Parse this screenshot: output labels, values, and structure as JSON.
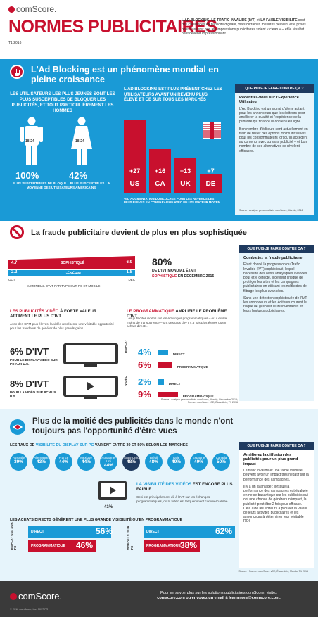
{
  "header": {
    "brand": "comScore.",
    "title": "NORMES PUBLICITAIRES",
    "period": "T1 2016",
    "intro_bold1": "L'AD BLOCKING, LE TRAFIC INVALIDE (IVT)",
    "intro_mid": " et ",
    "intro_bold2": "LA FAIBLE VISIBILITÉ",
    "intro_rest": " sont des challenges en publicité digitale, mais certaines mesures peuvent être prises pour s'assurer que les impressions publicitaires soient « clean » – et le résultat peut devenir impressionnant."
  },
  "section1": {
    "title": "L'Ad Blocking est un phénomène mondial en pleine croissance",
    "young_text": "LES UTILISATEURS LES PLUS JEUNES SONT LES PLUS SUSCEPTIBLES DE BLOQUER LES PUBLICITÉS, ET TOUT PARTICULIÈREMENT LES HOMMES",
    "age_label": "18-24",
    "men_pct": "100%",
    "men_label": "PLUS SUSCEPTIBLES DE BLOQUER DES PUBLICITÉS QUE LA MOYENNE DES UTILISATEURS AMÉRICAINS",
    "women_pct": "42%",
    "women_label": "PLUS SUSCEPTIBLES",
    "rich_text": "L'AD BLOCKING EST PLUS PRÉSENT CHEZ LES UTILISATEURS AYANT UN REVENU PLUS ÉLEVÉ ET CE SUR TOUS LES MARCHÉS",
    "bars": [
      {
        "value": "+27",
        "country": "US",
        "num": 27
      },
      {
        "value": "+16",
        "country": "CA",
        "num": 16
      },
      {
        "value": "+13",
        "country": "UK",
        "num": 13
      },
      {
        "value": "+7",
        "country": "DE",
        "num": 7
      }
    ],
    "bars_caption": "% D'AUGMENTATION DU BLOCAGE POUR LES REVENUS LES PLUS ÉLEVÉS EN COMPARAISON AVEC UN UTILISATEUR MOYEN",
    "sidebar_head": "QUE PUIS-JE FAIRE CONTRE ÇA ?",
    "sidebar_title": "Recentrez-vous sur l'Expérience Utilisateur",
    "sidebar_p1": "L'Ad Blocking est un signal d'alerte autant pour les annonceurs que les éditeurs pour améliorer la qualité et l'expérience de la publicité qui finance le contenu en ligne.",
    "sidebar_p2": "Bon nombre d'éditeurs sont actuellement en train de tester des options moins intrusives pour les consommateurs lorsqu'ils accèdent au contenu, avec ou sans publicité – et bon nombre de ces alternatives se révèlent efficaces.",
    "source": "Source : Analyse personnalisée comScore, Mondo, 2016"
  },
  "section2": {
    "title": "La fraude publicitaire devient de plus en plus sophistiquée",
    "soph_left": "4.7",
    "soph_label": "SOPHISTIQUÉ",
    "soph_right": "6.9",
    "gen_left": "2.2",
    "gen_label": "GÉNÉRAL",
    "gen_right": "1.8",
    "month_left": "OCT",
    "month_right": "DÉC",
    "chart_caption": "% MONDIAL D'IVT PAR TYPE SUR PC ET MOBILE",
    "big_pct": "80%",
    "big_line1": "DE L'IVT MONDIAL ÉTAIT",
    "big_line2_red": "SOPHISTIQUÉ",
    "big_line2_rest": " EN DÉCEMBRE 2015",
    "video_head_red": "LES PUBLICITÉS VIDÉO",
    "video_head_rest": " À FORTE VALEUR ATTIRENT LE PLUS D'IVT",
    "video_desc": "Avec des CPM plus élevés, la vidéo représente une véritable opportunité pour les fraudeurs de générer de plus grands gains.",
    "prog_head_red": "LE PROGRAMMATIQUE",
    "prog_head_rest": " AMPLIFIE LE PROBLÈME D'IVT",
    "prog_desc": "Les publicités vidéos sur les échanges programmatiques – où il existe moins de transparence – ont des taux d'IVT 4,5 fois plus élevés qu'en achats directs.",
    "display_pct": "6% D'IVT",
    "display_label": "POUR LE DISPLAY VIDÉO SUR PC AUX U.S.",
    "display_tag": "DISPLAY",
    "video_pct": "8% D'IVT",
    "video_label": "POUR LA VIDÉO SUR PC AUX U.S.",
    "video_tag": "VIDÉO",
    "d_direct": "4%",
    "d_prog": "6%",
    "v_direct": "2%",
    "v_prog": "9%",
    "direct_label": "DIRECT",
    "prog_label": "PROGRAMMATIQUE",
    "sidebar_head": "QUE PUIS-JE FAIRE CONTRE ÇA ?",
    "sidebar_title": "Combattez la fraude publicitaire",
    "sidebar_p1": "Étant donné la progression du Trafic Invalide (IVT) sophistiqué, lequel nécessite des outils analytiques avancés pour être détecté, il devient critique de protéger les sites et les campagnes publicitaires en utilisant les méthodes de filtrage les plus avancées.",
    "sidebar_p2": "Sans une détection sophistiquée de l'IVT, les annonceurs et les éditeurs courent le risque de gaspiller leurs inventaires et leurs budgets publicitaires.",
    "source1": "Source : Analyse personnalisée comScore, Mondo, Décembre 2015;",
    "source2": "Normes comScore vCE, États-Unis, T1 2016"
  },
  "section3": {
    "title": "Plus de la moitié des publicités dans le monde n'ont toujours pas l'opportunité d'être vues",
    "rates_pre": "LES TAUX DE ",
    "rates_blue": "VISIBILITÉ DU DISPLAY SUR PC",
    "rates_post": " VARIENT ENTRE 30 ET 50% SELON LES MARCHÉS",
    "markets": [
      {
        "name": "Australie",
        "pct": "39%"
      },
      {
        "name": "Allemagne",
        "pct": "43%"
      },
      {
        "name": "France",
        "pct": "44%"
      },
      {
        "name": "Mexique",
        "pct": "44%"
      },
      {
        "name": "Royaume-Uni",
        "pct": "44%"
      },
      {
        "name": "États-Unis",
        "pct": "48%"
      },
      {
        "name": "Brésil",
        "pct": "48%"
      },
      {
        "name": "Italie",
        "pct": "49%"
      },
      {
        "name": "Espagne",
        "pct": "49%"
      },
      {
        "name": "Canada",
        "pct": "50%"
      }
    ],
    "video_vis_blue": "LA VISIBILITÉ DES VIDÉOS",
    "video_vis_rest": " EST ENCORE PLUS FAIBLE",
    "video_vis_desc": "Ceci est principalement dû à l'IVT sur les échanges programmatiques, où la vidéo est fréquemment commercialisée.",
    "video_pct": "41%",
    "direct_head": "LES ACHATS DIRECTS GÉNÈRENT UNE PLUS GRANDE VISIBILITÉ QU'EN PROGRAMMATIQUE",
    "disp_tag": "DISPLAY U.S. SUR PC",
    "vid_tag": "VIDÉO U.S. SUR PC",
    "disp_direct": "56%",
    "disp_prog": "46%",
    "vid_direct": "62%",
    "vid_prog": "38%",
    "direct_label": "DIRECT",
    "prog_label": "PROGRAMMATIQUE",
    "sidebar_head": "QUE PUIS-JE FAIRE CONTRE ÇA ?",
    "sidebar_title": "Améliorez la diffusion des publicités pour un plus grand impact",
    "sidebar_p1": "Le trafic invalide et une faible visibilité peuvent avoir un impact très négatif sur la performance des campagnes.",
    "sidebar_p2": "Il y a un avantage : lorsque la performance des campagnes est évaluée en ne se basant que sur les publicités qui ont une chance de générer un impact, la publicité peut être 2 fois plus efficace. Cela aide les éditeurs à prouver la valeur de leurs activités publicitaires et les annonceurs à déterminer leur véritable ROI.",
    "source": "Source : Normes comScore vCE, États-Unis, Mondo, T1 2016"
  },
  "footer": {
    "brand": "comScore.",
    "cta_line1": "Pour en savoir plus sur les solutions publicitaires comScore, visitez",
    "cta_line2": "comscore.com ou envoyez un email à learnmore@comscore.com.",
    "copyright": "© 2016 comScore, Inc. 3097 FR"
  },
  "colors": {
    "red": "#c8102e",
    "blue": "#1a9ad6",
    "navy": "#1f3a5f",
    "light": "#e6f4fb"
  }
}
